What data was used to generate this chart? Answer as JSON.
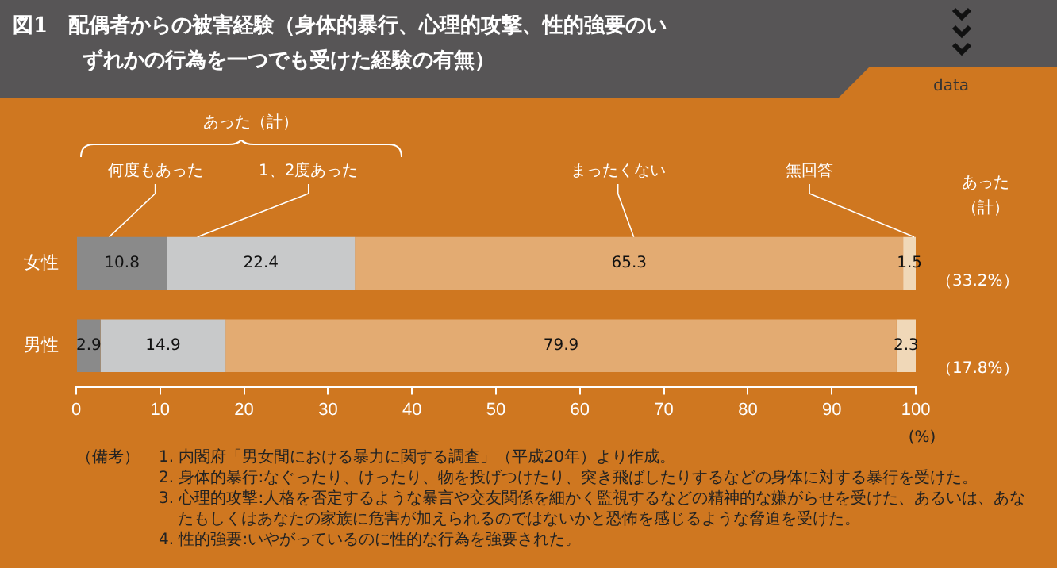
{
  "chart_data": {
    "type": "bar",
    "orientation": "horizontal",
    "stacked": true,
    "title": "図1　配偶者からの被害経験（身体的暴行、心理的攻撃、性的強要のいずれかの行為を一つでも受けた経験の有無）",
    "xlabel": "(%)",
    "categories": [
      "女性",
      "男性"
    ],
    "series": [
      {
        "name": "何度もあった",
        "color": "#8a8a8a",
        "values": [
          10.8,
          2.9
        ]
      },
      {
        "name": "1、2度あった",
        "color": "#c8c9ca",
        "values": [
          22.4,
          14.9
        ]
      },
      {
        "name": "まったくない",
        "color": "#e3ab72",
        "values": [
          65.3,
          79.9
        ]
      },
      {
        "name": "無回答",
        "color": "#f0d8b8",
        "values": [
          1.5,
          2.3
        ]
      }
    ],
    "data_labels": true,
    "xlim": [
      0,
      100
    ],
    "xticks": [
      0,
      10,
      20,
      30,
      40,
      50,
      60,
      70,
      80,
      90,
      100
    ],
    "grid": false,
    "legend": false,
    "annotations": [
      "あった（計）",
      "あった（計）",
      "（33.2%）",
      "（17.8%）",
      "data",
      "（備考）",
      "1. 内閣府「男女間における暴力に関する調査」（平成20年）より作成。",
      "2. 身体的暴行:なぐったり、けったり、物を投げつけたり、突き飛ばしたりするなどの身体に対する暴行を受けた。",
      "3. 心理的攻撃:人格を否定するような暴言や交友関係を細かく監視するなどの精神的な嫌がらせを受けた、あるいは、あなたもしくはあなたの家族に危害が加えられるのではないかと恐怖を感じるような脅迫を受けた。",
      "4. 性的強要:いやがっているのに性的な行為を強要された。"
    ]
  }
}
